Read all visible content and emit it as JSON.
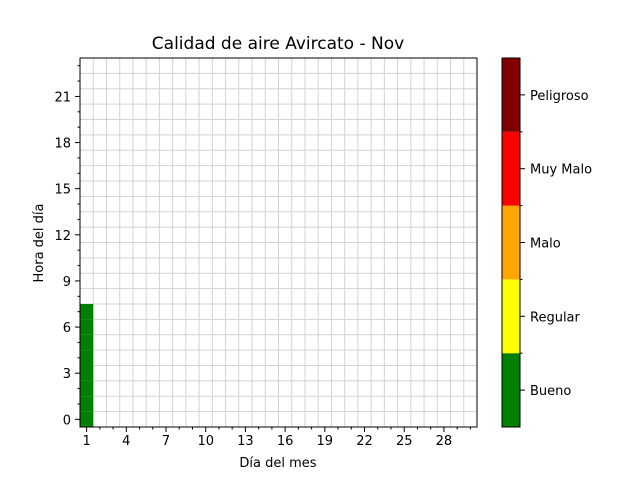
{
  "chart_data": {
    "type": "heatmap",
    "title": "Calidad de aire Avircato - Nov",
    "xlabel": "Día del mes",
    "ylabel": "Hora del día",
    "x_range": [
      0.5,
      30.5
    ],
    "y_range": [
      -0.5,
      23.5
    ],
    "x_ticks": [
      1,
      4,
      7,
      10,
      13,
      16,
      19,
      22,
      25,
      28
    ],
    "y_ticks": [
      0,
      3,
      6,
      9,
      12,
      15,
      18,
      21
    ],
    "grid": true,
    "cells": [
      {
        "day": 1,
        "hour": 0,
        "category": "Bueno"
      },
      {
        "day": 1,
        "hour": 1,
        "category": "Bueno"
      },
      {
        "day": 1,
        "hour": 2,
        "category": "Bueno"
      },
      {
        "day": 1,
        "hour": 3,
        "category": "Bueno"
      },
      {
        "day": 1,
        "hour": 4,
        "category": "Bueno"
      },
      {
        "day": 1,
        "hour": 5,
        "category": "Bueno"
      },
      {
        "day": 1,
        "hour": 6,
        "category": "Bueno"
      },
      {
        "day": 1,
        "hour": 7,
        "category": "Bueno"
      }
    ],
    "colorbar": {
      "categories": [
        {
          "label": "Bueno",
          "color": "#008000"
        },
        {
          "label": "Regular",
          "color": "#ffff00"
        },
        {
          "label": "Malo",
          "color": "#ffa500"
        },
        {
          "label": "Muy Malo",
          "color": "#ff0000"
        },
        {
          "label": "Peligroso",
          "color": "#800000"
        }
      ]
    }
  }
}
